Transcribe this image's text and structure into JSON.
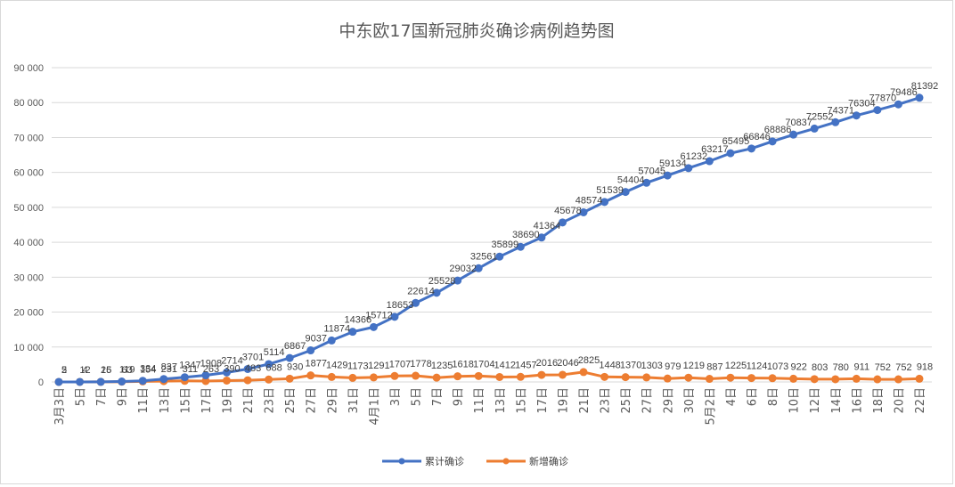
{
  "chart_data": {
    "type": "line",
    "title": "中东欧17国新冠肺炎确诊病例趋势图",
    "xlabel": "",
    "ylabel": "",
    "ylim": [
      0,
      90000
    ],
    "y_ticks": [
      "0",
      "10000",
      "20000",
      "30000",
      "40000",
      "50000",
      "60000",
      "70000",
      "80000",
      "90000"
    ],
    "grid": "horizontal",
    "legend_position": "bottom",
    "categories": [
      "3月3日",
      "5日",
      "7日",
      "9日",
      "11日",
      "13日",
      "15日",
      "17日",
      "19日",
      "21日",
      "23日",
      "25日",
      "27日",
      "29日",
      "31日",
      "4月1日",
      "3日",
      "5日",
      "7日",
      "9日",
      "11日",
      "13日",
      "15日",
      "17日",
      "19日",
      "21日",
      "23日",
      "25日",
      "27日",
      "29日",
      "30日",
      "5月2日",
      "4日",
      "6日",
      "8日",
      "10日",
      "12日",
      "14日",
      "16日",
      "18日",
      "20日",
      "22日"
    ],
    "series": [
      {
        "name": "累计确诊",
        "color": "#4472c4",
        "values": [
          2,
          12,
          25,
          119,
          334,
          837,
          1347,
          1908,
          2714,
          3701,
          5114,
          6867,
          9037,
          11874,
          14366,
          15712,
          18653,
          22614,
          25528,
          29032,
          32561,
          35899,
          38690,
          41364,
          45678,
          48574,
          51539,
          54404,
          57045,
          59134,
          61232,
          63217,
          65495,
          66846,
          68886,
          70837,
          72552,
          74371,
          76304,
          77870,
          79486,
          81392
        ],
        "labels": [
          "2",
          "12",
          "25",
          "119",
          "334",
          "837",
          "1347",
          "1908",
          "2714",
          "3701",
          "5114",
          "6867",
          "9037",
          "11874",
          "14366",
          "15712",
          "18653",
          "22614",
          "25528",
          "29032",
          "32561",
          "35899",
          "38690",
          "41364",
          "45678",
          "48574",
          "51539",
          "54404",
          "57045",
          "59134",
          "61232",
          "63217",
          "65495",
          "66846",
          "68886",
          "70837",
          "72552",
          "74371",
          "76304",
          "77870",
          "79486",
          "81392"
        ]
      },
      {
        "name": "新增确诊",
        "color": "#ed7d31",
        "values": [
          5,
          4,
          16,
          63,
          154,
          231,
          311,
          263,
          390,
          483,
          688,
          930,
          1877,
          1429,
          1173,
          1291,
          1707,
          1778,
          1235,
          1618,
          1704,
          1412,
          1457,
          2016,
          2046,
          2825,
          1448,
          1370,
          1303,
          979,
          1219,
          887,
          1225,
          1124,
          1073,
          922,
          803,
          780,
          911,
          752,
          752,
          918
        ],
        "labels": [
          "5",
          "4",
          "16",
          "63",
          "154",
          "231",
          "311",
          "263",
          "390",
          "483",
          "688",
          "930",
          "1877",
          "1429",
          "1173",
          "1291",
          "1707",
          "1778",
          "1235",
          "1618",
          "1704",
          "1412",
          "1457",
          "2016",
          "2046",
          "2825",
          "1448",
          "1370",
          "1303",
          "979",
          "1219",
          "887",
          "1225",
          "1124",
          "1073",
          "922",
          "803",
          "780",
          "911",
          "752",
          "752",
          "918"
        ]
      }
    ]
  }
}
